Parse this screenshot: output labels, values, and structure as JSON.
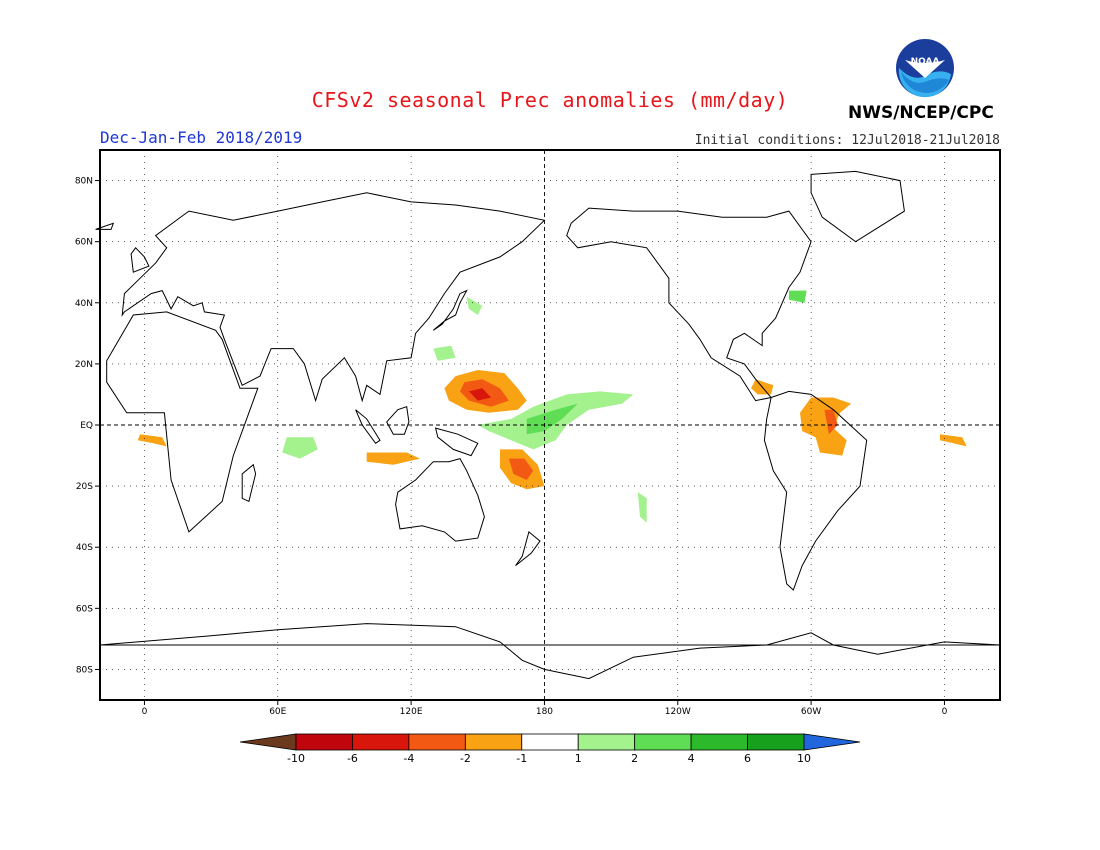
{
  "header": {
    "title": "CFSv2 seasonal Prec anomalies (mm/day)",
    "period": "Dec-Jan-Feb 2018/2019",
    "initial_conditions": "Initial conditions: 12Jul2018-21Jul2018",
    "agency": "NWS/NCEP/CPC",
    "logo_text": "NOAA"
  },
  "axes": {
    "x_ticks": [
      {
        "lon": 0,
        "label": "0"
      },
      {
        "lon": 60,
        "label": "60E"
      },
      {
        "lon": 120,
        "label": "120E"
      },
      {
        "lon": 180,
        "label": "180"
      },
      {
        "lon": 240,
        "label": "120W"
      },
      {
        "lon": 300,
        "label": "60W"
      },
      {
        "lon": 360,
        "label": "0"
      }
    ],
    "y_ticks": [
      {
        "lat": 80,
        "label": "80N"
      },
      {
        "lat": 60,
        "label": "60N"
      },
      {
        "lat": 40,
        "label": "40N"
      },
      {
        "lat": 20,
        "label": "20N"
      },
      {
        "lat": 0,
        "label": "EQ"
      },
      {
        "lat": -20,
        "label": "20S"
      },
      {
        "lat": -40,
        "label": "40S"
      },
      {
        "lat": -60,
        "label": "60S"
      },
      {
        "lat": -80,
        "label": "80S"
      }
    ],
    "lon_range": [
      -20,
      385
    ],
    "lat_range": [
      -90,
      90
    ]
  },
  "colorbar": {
    "labels": [
      "-10",
      "-6",
      "-4",
      "-2",
      "-1",
      "1",
      "2",
      "4",
      "6",
      "10"
    ],
    "colors": [
      "#6b3a1e",
      "#c0060c",
      "#d9160c",
      "#f25a14",
      "#f9a214",
      "#ffffff",
      "#a4f28e",
      "#5fdd55",
      "#2cba2c",
      "#17a01b",
      "#2266dd"
    ]
  },
  "anomalies": [
    {
      "name": "west-pacific-dry",
      "color": "#f9a214",
      "pts": [
        [
          150,
          18
        ],
        [
          162,
          17
        ],
        [
          168,
          12
        ],
        [
          172,
          8
        ],
        [
          168,
          5
        ],
        [
          155,
          4
        ],
        [
          145,
          5
        ],
        [
          137,
          8
        ],
        [
          135,
          12
        ],
        [
          140,
          16
        ]
      ]
    },
    {
      "name": "west-pacific-dry-core",
      "color": "#f25a14",
      "pts": [
        [
          144,
          14
        ],
        [
          152,
          15
        ],
        [
          160,
          12
        ],
        [
          164,
          8
        ],
        [
          156,
          6
        ],
        [
          146,
          8
        ],
        [
          142,
          11
        ]
      ]
    },
    {
      "name": "west-pacific-dry-peak",
      "color": "#d9160c",
      "pts": [
        [
          146,
          11
        ],
        [
          152,
          12
        ],
        [
          156,
          9
        ],
        [
          150,
          8
        ]
      ]
    },
    {
      "name": "sw-pacific-dry",
      "color": "#f9a214",
      "pts": [
        [
          160,
          -8
        ],
        [
          170,
          -8
        ],
        [
          177,
          -13
        ],
        [
          180,
          -20
        ],
        [
          172,
          -21
        ],
        [
          165,
          -19
        ],
        [
          160,
          -14
        ]
      ]
    },
    {
      "name": "sw-pacific-dry-core",
      "color": "#f25a14",
      "pts": [
        [
          164,
          -11
        ],
        [
          171,
          -11
        ],
        [
          175,
          -15
        ],
        [
          172,
          -18
        ],
        [
          166,
          -16
        ]
      ]
    },
    {
      "name": "central-pacific-wet",
      "color": "#a4f28e",
      "pts": [
        [
          150,
          0
        ],
        [
          165,
          2
        ],
        [
          175,
          6
        ],
        [
          190,
          10
        ],
        [
          205,
          11
        ],
        [
          220,
          10
        ],
        [
          215,
          7
        ],
        [
          200,
          5
        ],
        [
          190,
          0
        ],
        [
          185,
          -5
        ],
        [
          175,
          -8
        ],
        [
          165,
          -5
        ],
        [
          155,
          -2
        ]
      ]
    },
    {
      "name": "central-pacific-wet-core",
      "color": "#5fdd55",
      "pts": [
        [
          172,
          2
        ],
        [
          185,
          5
        ],
        [
          195,
          7
        ],
        [
          188,
          2
        ],
        [
          180,
          -2
        ],
        [
          172,
          -3
        ]
      ]
    },
    {
      "name": "east-pacific-wet",
      "color": "#a4f28e",
      "pts": [
        [
          222,
          -22
        ],
        [
          226,
          -24
        ],
        [
          226,
          -32
        ],
        [
          223,
          -30
        ]
      ]
    },
    {
      "name": "south-america-dry",
      "color": "#f9a214",
      "pts": [
        [
          300,
          9
        ],
        [
          310,
          9
        ],
        [
          318,
          7
        ],
        [
          313,
          4
        ],
        [
          310,
          -1
        ],
        [
          316,
          -5
        ],
        [
          314,
          -10
        ],
        [
          304,
          -9
        ],
        [
          302,
          -4
        ],
        [
          296,
          -2
        ],
        [
          295,
          4
        ]
      ]
    },
    {
      "name": "central-america-dry",
      "color": "#f9a214",
      "pts": [
        [
          275,
          15
        ],
        [
          283,
          13
        ],
        [
          282,
          10
        ],
        [
          276,
          10
        ],
        [
          273,
          12
        ]
      ]
    },
    {
      "name": "south-america-dry-core",
      "color": "#f25a14",
      "pts": [
        [
          306,
          5
        ],
        [
          310,
          5
        ],
        [
          312,
          0
        ],
        [
          308,
          -3
        ]
      ]
    },
    {
      "name": "india-ocean-wet",
      "color": "#a4f28e",
      "pts": [
        [
          64,
          -4
        ],
        [
          76,
          -4
        ],
        [
          78,
          -8
        ],
        [
          70,
          -11
        ],
        [
          62,
          -9
        ]
      ]
    },
    {
      "name": "indonesia-dry",
      "color": "#f9a214",
      "pts": [
        [
          100,
          -9
        ],
        [
          118,
          -9
        ],
        [
          124,
          -11
        ],
        [
          112,
          -13
        ],
        [
          100,
          -12
        ]
      ]
    },
    {
      "name": "west-pacific-wet-small",
      "color": "#a4f28e",
      "pts": [
        [
          130,
          25
        ],
        [
          138,
          26
        ],
        [
          140,
          22
        ],
        [
          132,
          21
        ]
      ]
    },
    {
      "name": "japan-wet",
      "color": "#a4f28e",
      "pts": [
        [
          145,
          42
        ],
        [
          152,
          39
        ],
        [
          150,
          36
        ],
        [
          146,
          38
        ]
      ]
    },
    {
      "name": "atlantic-wet",
      "color": "#5fdd55",
      "pts": [
        [
          290,
          44
        ],
        [
          298,
          44
        ],
        [
          297,
          40
        ],
        [
          290,
          41
        ]
      ]
    },
    {
      "name": "africa-dry",
      "color": "#f9a214",
      "pts": [
        [
          -2,
          -3
        ],
        [
          8,
          -4
        ],
        [
          10,
          -7
        ],
        [
          4,
          -6
        ],
        [
          -3,
          -5
        ]
      ]
    },
    {
      "name": "atlantic-dry-east",
      "color": "#f9a214",
      "pts": [
        [
          358,
          -3
        ],
        [
          368,
          -4
        ],
        [
          370,
          -7
        ],
        [
          364,
          -6
        ],
        [
          358,
          -5
        ]
      ]
    }
  ],
  "coastlines": [
    {
      "name": "africa",
      "pts": [
        [
          -17,
          21
        ],
        [
          -5,
          36
        ],
        [
          10,
          37
        ],
        [
          32,
          31
        ],
        [
          35,
          28
        ],
        [
          43,
          12
        ],
        [
          51,
          12
        ],
        [
          40,
          -10
        ],
        [
          35,
          -25
        ],
        [
          20,
          -35
        ],
        [
          12,
          -18
        ],
        [
          9,
          4
        ],
        [
          -8,
          4
        ],
        [
          -17,
          14
        ]
      ]
    },
    {
      "name": "eurasia",
      "pts": [
        [
          -10,
          36
        ],
        [
          -9,
          43
        ],
        [
          -2,
          48
        ],
        [
          5,
          53
        ],
        [
          10,
          58
        ],
        [
          5,
          62
        ],
        [
          20,
          70
        ],
        [
          40,
          67
        ],
        [
          60,
          70
        ],
        [
          80,
          73
        ],
        [
          100,
          76
        ],
        [
          120,
          73
        ],
        [
          140,
          72
        ],
        [
          160,
          70
        ],
        [
          180,
          67
        ],
        [
          170,
          60
        ],
        [
          160,
          55
        ],
        [
          142,
          50
        ],
        [
          135,
          43
        ],
        [
          128,
          35
        ],
        [
          122,
          30
        ],
        [
          120,
          22
        ],
        [
          109,
          21
        ],
        [
          106,
          10
        ],
        [
          100,
          13
        ],
        [
          98,
          8
        ],
        [
          95,
          16
        ],
        [
          90,
          22
        ],
        [
          80,
          15
        ],
        [
          77,
          8
        ],
        [
          72,
          20
        ],
        [
          67,
          25
        ],
        [
          57,
          25
        ],
        [
          52,
          16
        ],
        [
          44,
          13
        ],
        [
          36,
          28
        ],
        [
          34,
          32
        ],
        [
          36,
          36
        ],
        [
          27,
          37
        ],
        [
          26,
          40
        ],
        [
          22,
          39
        ],
        [
          15,
          42
        ],
        [
          12,
          38
        ],
        [
          8,
          44
        ],
        [
          3,
          43
        ],
        [
          -9,
          37
        ]
      ]
    },
    {
      "name": "north-america",
      "pts": [
        [
          192,
          66
        ],
        [
          200,
          71
        ],
        [
          220,
          70
        ],
        [
          240,
          70
        ],
        [
          260,
          68
        ],
        [
          280,
          68
        ],
        [
          290,
          70
        ],
        [
          300,
          60
        ],
        [
          295,
          50
        ],
        [
          290,
          45
        ],
        [
          284,
          35
        ],
        [
          278,
          30
        ],
        [
          278,
          26
        ],
        [
          270,
          30
        ],
        [
          265,
          28
        ],
        [
          262,
          22
        ],
        [
          270,
          20
        ],
        [
          275,
          15
        ],
        [
          282,
          9
        ],
        [
          275,
          8
        ],
        [
          268,
          16
        ],
        [
          255,
          22
        ],
        [
          250,
          28
        ],
        [
          245,
          33
        ],
        [
          236,
          40
        ],
        [
          236,
          48
        ],
        [
          226,
          58
        ],
        [
          210,
          60
        ],
        [
          195,
          58
        ],
        [
          190,
          62
        ]
      ]
    },
    {
      "name": "south-america",
      "pts": [
        [
          282,
          9
        ],
        [
          290,
          11
        ],
        [
          300,
          10
        ],
        [
          310,
          5
        ],
        [
          325,
          -5
        ],
        [
          322,
          -20
        ],
        [
          312,
          -28
        ],
        [
          302,
          -38
        ],
        [
          296,
          -46
        ],
        [
          292,
          -54
        ],
        [
          289,
          -52
        ],
        [
          286,
          -40
        ],
        [
          289,
          -22
        ],
        [
          283,
          -15
        ],
        [
          279,
          -5
        ],
        [
          280,
          2
        ]
      ]
    },
    {
      "name": "australia",
      "pts": [
        [
          114,
          -22
        ],
        [
          122,
          -18
        ],
        [
          130,
          -12
        ],
        [
          137,
          -12
        ],
        [
          142,
          -11
        ],
        [
          145,
          -15
        ],
        [
          150,
          -23
        ],
        [
          153,
          -30
        ],
        [
          150,
          -37
        ],
        [
          140,
          -38
        ],
        [
          135,
          -35
        ],
        [
          125,
          -33
        ],
        [
          115,
          -34
        ],
        [
          113,
          -26
        ]
      ]
    },
    {
      "name": "greenland",
      "pts": [
        [
          300,
          82
        ],
        [
          320,
          83
        ],
        [
          340,
          80
        ],
        [
          342,
          70
        ],
        [
          320,
          60
        ],
        [
          305,
          68
        ],
        [
          300,
          76
        ]
      ]
    },
    {
      "name": "antarctica",
      "pts": [
        [
          -20,
          -72
        ],
        [
          30,
          -69
        ],
        [
          60,
          -67
        ],
        [
          100,
          -65
        ],
        [
          140,
          -66
        ],
        [
          160,
          -71
        ],
        [
          170,
          -77
        ],
        [
          180,
          -80
        ],
        [
          200,
          -83
        ],
        [
          220,
          -76
        ],
        [
          250,
          -73
        ],
        [
          280,
          -72
        ],
        [
          300,
          -68
        ],
        [
          310,
          -72
        ],
        [
          330,
          -75
        ],
        [
          360,
          -71
        ],
        [
          385,
          -72
        ]
      ]
    },
    {
      "name": "borneo",
      "pts": [
        [
          109,
          1
        ],
        [
          114,
          5
        ],
        [
          118,
          6
        ],
        [
          119,
          1
        ],
        [
          117,
          -3
        ],
        [
          112,
          -3
        ]
      ]
    },
    {
      "name": "sumatra",
      "pts": [
        [
          95,
          5
        ],
        [
          100,
          2
        ],
        [
          106,
          -5
        ],
        [
          104,
          -6
        ],
        [
          98,
          0
        ]
      ]
    },
    {
      "name": "new-guinea",
      "pts": [
        [
          131,
          -1
        ],
        [
          141,
          -3
        ],
        [
          150,
          -6
        ],
        [
          147,
          -10
        ],
        [
          139,
          -8
        ],
        [
          132,
          -4
        ]
      ]
    },
    {
      "name": "japan",
      "pts": [
        [
          130,
          31
        ],
        [
          135,
          34
        ],
        [
          140,
          36
        ],
        [
          142,
          40
        ],
        [
          145,
          44
        ],
        [
          142,
          43
        ],
        [
          139,
          38
        ],
        [
          134,
          33
        ]
      ]
    },
    {
      "name": "madagascar",
      "pts": [
        [
          44,
          -16
        ],
        [
          49,
          -13
        ],
        [
          50,
          -16
        ],
        [
          47,
          -25
        ],
        [
          44,
          -24
        ]
      ]
    },
    {
      "name": "uk",
      "pts": [
        [
          -5,
          50
        ],
        [
          2,
          52
        ],
        [
          0,
          55
        ],
        [
          -4,
          58
        ],
        [
          -6,
          56
        ]
      ]
    },
    {
      "name": "new-zealand",
      "pts": [
        [
          173,
          -35
        ],
        [
          178,
          -38
        ],
        [
          174,
          -42
        ],
        [
          167,
          -46
        ],
        [
          170,
          -43
        ]
      ]
    },
    {
      "name": "iceland",
      "pts": [
        [
          -22,
          64
        ],
        [
          -14,
          66
        ],
        [
          -15,
          64
        ]
      ]
    }
  ]
}
